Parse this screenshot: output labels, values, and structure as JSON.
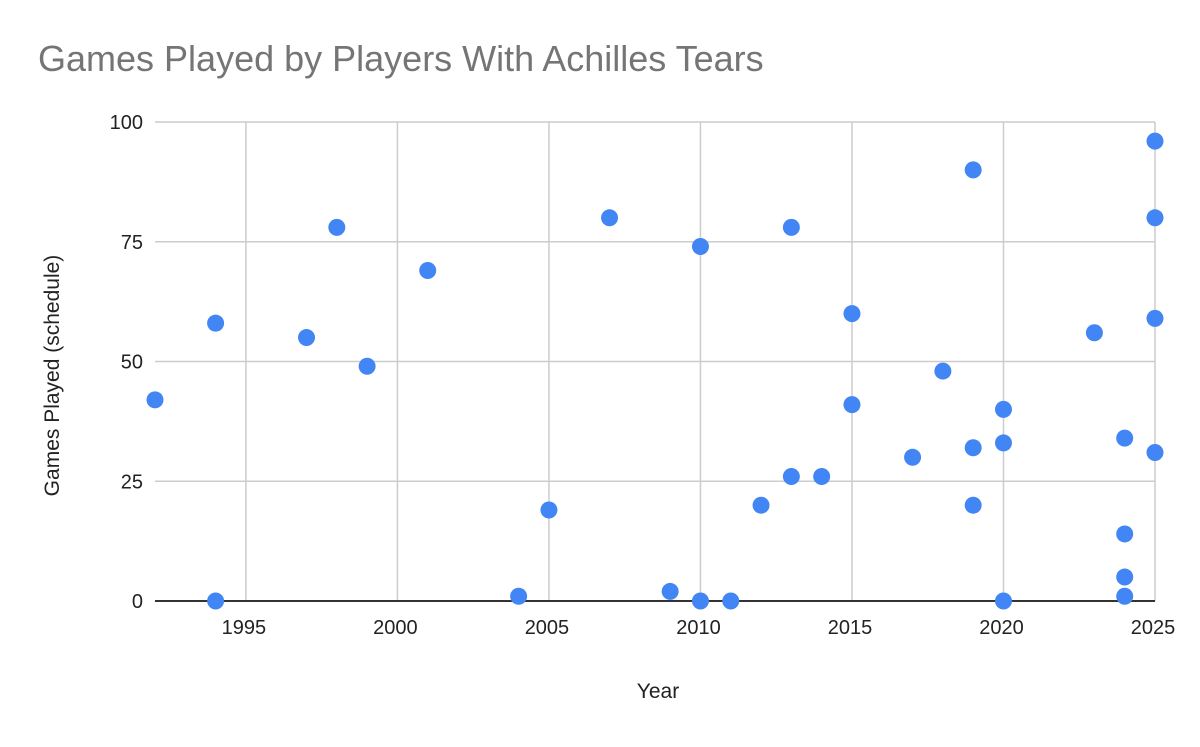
{
  "chart_data": {
    "type": "scatter",
    "title": "Games Played by Players With Achilles Tears",
    "xlabel": "Year",
    "ylabel": "Games Played (schedule)",
    "xlim": [
      1992,
      2025
    ],
    "ylim": [
      0,
      100
    ],
    "xticks": [
      1995,
      2000,
      2005,
      2010,
      2015,
      2020,
      2025
    ],
    "yticks": [
      0,
      25,
      50,
      75,
      100
    ],
    "grid": true,
    "legend": "none",
    "colors": {
      "point": "#4285f4",
      "grid": "#cccccc",
      "axis": "#333333",
      "title": "#757575",
      "text": "#222222"
    },
    "series": [
      {
        "points": [
          {
            "x": 1992,
            "y": 42
          },
          {
            "x": 1994,
            "y": 58
          },
          {
            "x": 1994,
            "y": 0
          },
          {
            "x": 1997,
            "y": 55
          },
          {
            "x": 1998,
            "y": 78
          },
          {
            "x": 1999,
            "y": 49
          },
          {
            "x": 2001,
            "y": 69
          },
          {
            "x": 2004,
            "y": 1
          },
          {
            "x": 2005,
            "y": 19
          },
          {
            "x": 2007,
            "y": 80
          },
          {
            "x": 2009,
            "y": 2
          },
          {
            "x": 2010,
            "y": 74
          },
          {
            "x": 2010,
            "y": 0
          },
          {
            "x": 2011,
            "y": 0
          },
          {
            "x": 2012,
            "y": 20
          },
          {
            "x": 2013,
            "y": 78
          },
          {
            "x": 2013,
            "y": 26
          },
          {
            "x": 2014,
            "y": 26
          },
          {
            "x": 2015,
            "y": 60
          },
          {
            "x": 2015,
            "y": 41
          },
          {
            "x": 2017,
            "y": 30
          },
          {
            "x": 2018,
            "y": 48
          },
          {
            "x": 2019,
            "y": 90
          },
          {
            "x": 2019,
            "y": 32
          },
          {
            "x": 2019,
            "y": 20
          },
          {
            "x": 2020,
            "y": 40
          },
          {
            "x": 2020,
            "y": 33
          },
          {
            "x": 2020,
            "y": 0
          },
          {
            "x": 2023,
            "y": 56
          },
          {
            "x": 2024,
            "y": 34
          },
          {
            "x": 2024,
            "y": 14
          },
          {
            "x": 2024,
            "y": 5
          },
          {
            "x": 2024,
            "y": 1
          },
          {
            "x": 2025,
            "y": 96
          },
          {
            "x": 2025,
            "y": 80
          },
          {
            "x": 2025,
            "y": 59
          },
          {
            "x": 2025,
            "y": 31
          }
        ]
      }
    ]
  }
}
